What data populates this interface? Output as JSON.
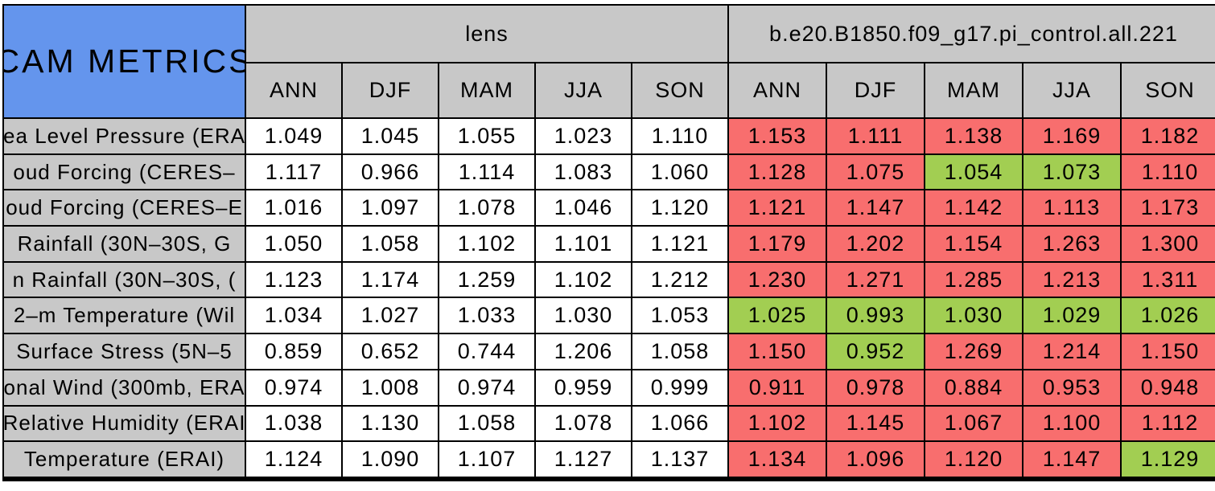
{
  "title": "CAM METRICS",
  "colors": {
    "corner_bg": "#6495ED",
    "header_bg": "#C8C8C8",
    "bad_bg": "#F86E6E",
    "good_bg": "#A2CE52",
    "neutral_bg": "#FFFFFF",
    "border": "#000000"
  },
  "chart_data": {
    "type": "table",
    "title": "CAM METRICS",
    "column_groups": [
      {
        "name": "lens",
        "columns": [
          "ANN",
          "DJF",
          "MAM",
          "JJA",
          "SON"
        ]
      },
      {
        "name": "b.e20.B1850.f09_g17.pi_control.all.221",
        "columns": [
          "ANN",
          "DJF",
          "MAM",
          "JJA",
          "SON"
        ]
      }
    ],
    "rows": [
      {
        "label": "ea Level Pressure (ERA",
        "lens": [
          "1.049",
          "1.045",
          "1.055",
          "1.023",
          "1.110"
        ],
        "control": [
          "1.153",
          "1.111",
          "1.138",
          "1.169",
          "1.182"
        ],
        "control_status": [
          "bad",
          "bad",
          "bad",
          "bad",
          "bad"
        ]
      },
      {
        "label": "oud Forcing (CERES–",
        "lens": [
          "1.117",
          "0.966",
          "1.114",
          "1.083",
          "1.060"
        ],
        "control": [
          "1.128",
          "1.075",
          "1.054",
          "1.073",
          "1.110"
        ],
        "control_status": [
          "bad",
          "bad",
          "good",
          "good",
          "bad"
        ]
      },
      {
        "label": "oud Forcing (CERES–E",
        "lens": [
          "1.016",
          "1.097",
          "1.078",
          "1.046",
          "1.120"
        ],
        "control": [
          "1.121",
          "1.147",
          "1.142",
          "1.113",
          "1.173"
        ],
        "control_status": [
          "bad",
          "bad",
          "bad",
          "bad",
          "bad"
        ]
      },
      {
        "label": "Rainfall (30N–30S, G",
        "lens": [
          "1.050",
          "1.058",
          "1.102",
          "1.101",
          "1.121"
        ],
        "control": [
          "1.179",
          "1.202",
          "1.154",
          "1.263",
          "1.300"
        ],
        "control_status": [
          "bad",
          "bad",
          "bad",
          "bad",
          "bad"
        ]
      },
      {
        "label": "n Rainfall (30N–30S, (",
        "lens": [
          "1.123",
          "1.174",
          "1.259",
          "1.102",
          "1.212"
        ],
        "control": [
          "1.230",
          "1.271",
          "1.285",
          "1.213",
          "1.311"
        ],
        "control_status": [
          "bad",
          "bad",
          "bad",
          "bad",
          "bad"
        ]
      },
      {
        "label": "2–m Temperature (Wil",
        "lens": [
          "1.034",
          "1.027",
          "1.033",
          "1.030",
          "1.053"
        ],
        "control": [
          "1.025",
          "0.993",
          "1.030",
          "1.029",
          "1.026"
        ],
        "control_status": [
          "good",
          "good",
          "good",
          "good",
          "good"
        ]
      },
      {
        "label": "Surface Stress (5N–5",
        "lens": [
          "0.859",
          "0.652",
          "0.744",
          "1.206",
          "1.058"
        ],
        "control": [
          "1.150",
          "0.952",
          "1.269",
          "1.214",
          "1.150"
        ],
        "control_status": [
          "bad",
          "good",
          "bad",
          "bad",
          "bad"
        ]
      },
      {
        "label": "onal Wind (300mb, ERA",
        "lens": [
          "0.974",
          "1.008",
          "0.974",
          "0.959",
          "0.999"
        ],
        "control": [
          "0.911",
          "0.978",
          "0.884",
          "0.953",
          "0.948"
        ],
        "control_status": [
          "bad",
          "bad",
          "bad",
          "bad",
          "bad"
        ]
      },
      {
        "label": "Relative Humidity (ERAI",
        "lens": [
          "1.038",
          "1.130",
          "1.058",
          "1.078",
          "1.066"
        ],
        "control": [
          "1.102",
          "1.145",
          "1.067",
          "1.100",
          "1.112"
        ],
        "control_status": [
          "bad",
          "bad",
          "bad",
          "bad",
          "bad"
        ]
      },
      {
        "label": "Temperature (ERAI)",
        "lens": [
          "1.124",
          "1.090",
          "1.107",
          "1.127",
          "1.137"
        ],
        "control": [
          "1.134",
          "1.096",
          "1.120",
          "1.147",
          "1.129"
        ],
        "control_status": [
          "bad",
          "bad",
          "bad",
          "bad",
          "good"
        ]
      }
    ]
  }
}
